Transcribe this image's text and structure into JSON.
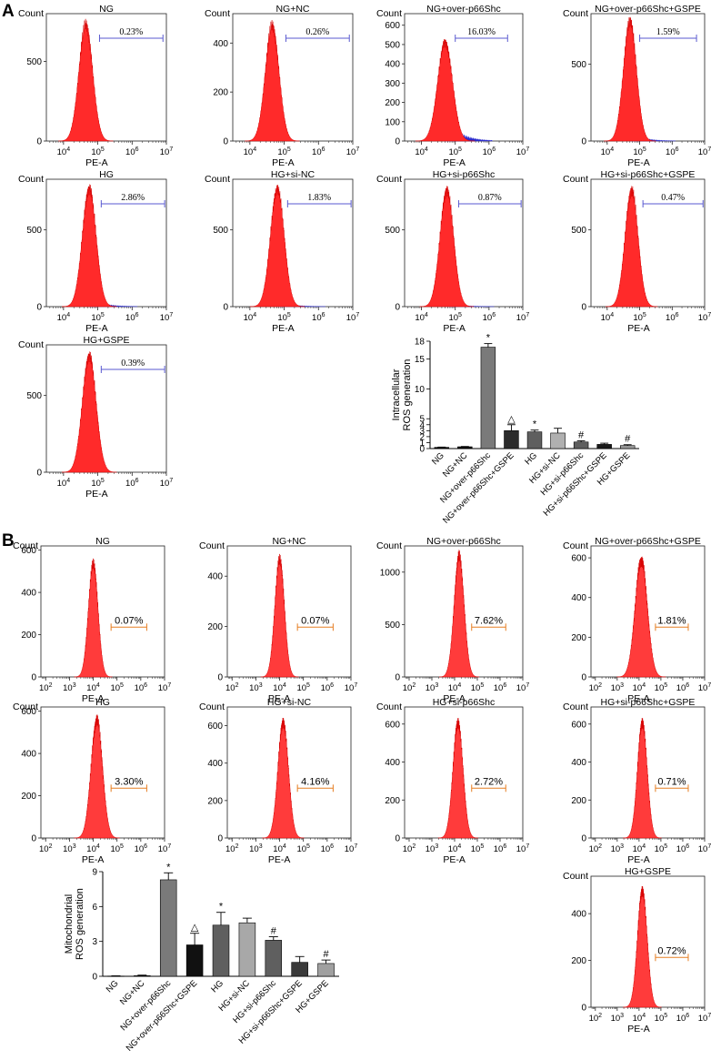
{
  "panels": {
    "A": "A",
    "B": "B"
  },
  "hist_common": {
    "count_label": "Count",
    "x_label": "PE-A"
  },
  "chart_data": [
    {
      "type": "histogram",
      "panel": "A",
      "title": "NG",
      "marker_value": "0.23%",
      "yticks": [
        "0",
        "500"
      ],
      "ymax": 800,
      "xticks": [
        "10^4",
        "10^5",
        "10^6",
        "10^7"
      ],
      "x_decade_range": [
        3.5,
        7
      ],
      "peak_log": 4.65,
      "peak_y": 730,
      "width": 0.2,
      "tail_color": "#3333cc",
      "tail": 0,
      "marker_range_log": [
        5.05,
        6.9
      ],
      "marker_color": "#5a5ad0",
      "fill": "#ff2a2a"
    },
    {
      "type": "histogram",
      "panel": "A",
      "title": "NG+NC",
      "marker_value": "0.26%",
      "yticks": [
        "0",
        "200",
        "400"
      ],
      "ymax": 520,
      "xticks": [
        "10^4",
        "10^5",
        "10^6",
        "10^7"
      ],
      "x_decade_range": [
        3.5,
        7
      ],
      "peak_log": 4.65,
      "peak_y": 470,
      "width": 0.2,
      "tail_color": "#3333cc",
      "tail": 0,
      "marker_range_log": [
        5.05,
        6.9
      ],
      "marker_color": "#5a5ad0",
      "fill": "#ff2a2a"
    },
    {
      "type": "histogram",
      "panel": "A",
      "title": "NG+over-p66Shc",
      "marker_value": "16.03%",
      "yticks": [
        "0",
        "100",
        "200",
        "300",
        "400",
        "500",
        "600"
      ],
      "ymax": 660,
      "xticks": [
        "10^4",
        "10^5",
        "10^6",
        "10^7"
      ],
      "x_decade_range": [
        3.5,
        7
      ],
      "peak_log": 4.7,
      "peak_y": 510,
      "width": 0.22,
      "tail_color": "#2a2acc",
      "tail": 1,
      "marker_range_log": [
        5.0,
        6.55
      ],
      "marker_color": "#5a5ad0",
      "fill": "#ff2a2a"
    },
    {
      "type": "histogram",
      "panel": "A",
      "title": "NG+over-p66Shc+GSPE",
      "marker_value": "1.59%",
      "yticks": [
        "0",
        "500"
      ],
      "ymax": 830,
      "xticks": [
        "10^4",
        "10^5",
        "10^6",
        "10^7"
      ],
      "x_decade_range": [
        3.5,
        7
      ],
      "peak_log": 4.7,
      "peak_y": 780,
      "width": 0.2,
      "tail_color": "#3333cc",
      "tail": 0.3,
      "marker_range_log": [
        5.0,
        6.75
      ],
      "marker_color": "#5a5ad0",
      "fill": "#ff2a2a"
    },
    {
      "type": "histogram",
      "panel": "A",
      "title": "HG",
      "marker_value": "2.86%",
      "yticks": [
        "0",
        "500"
      ],
      "ymax": 830,
      "xticks": [
        "10^4",
        "10^5",
        "10^6",
        "10^7"
      ],
      "x_decade_range": [
        3.5,
        7
      ],
      "peak_log": 4.75,
      "peak_y": 770,
      "width": 0.2,
      "tail_color": "#3333cc",
      "tail": 0.3,
      "marker_range_log": [
        5.1,
        6.95
      ],
      "marker_color": "#5a5ad0",
      "fill": "#ff2a2a"
    },
    {
      "type": "histogram",
      "panel": "A",
      "title": "HG+si-NC",
      "marker_value": "1.83%",
      "yticks": [
        "0",
        "500"
      ],
      "ymax": 830,
      "xticks": [
        "10^4",
        "10^5",
        "10^6",
        "10^7"
      ],
      "x_decade_range": [
        3.5,
        7
      ],
      "peak_log": 4.8,
      "peak_y": 770,
      "width": 0.2,
      "tail_color": "#3333cc",
      "tail": 0.2,
      "marker_range_log": [
        5.1,
        6.95
      ],
      "marker_color": "#5a5ad0",
      "fill": "#ff2a2a"
    },
    {
      "type": "histogram",
      "panel": "A",
      "title": "HG+si-p66Shc",
      "marker_value": "0.87%",
      "yticks": [
        "0",
        "500"
      ],
      "ymax": 830,
      "xticks": [
        "10^4",
        "10^5",
        "10^6",
        "10^7"
      ],
      "x_decade_range": [
        3.5,
        7
      ],
      "peak_log": 4.75,
      "peak_y": 760,
      "width": 0.2,
      "tail_color": "#3333cc",
      "tail": 0.15,
      "marker_range_log": [
        5.1,
        6.95
      ],
      "marker_color": "#5a5ad0",
      "fill": "#ff2a2a"
    },
    {
      "type": "histogram",
      "panel": "A",
      "title": "HG+si-p66Shc+GSPE",
      "marker_value": "0.47%",
      "yticks": [
        "0",
        "500"
      ],
      "ymax": 830,
      "xticks": [
        "10^4",
        "10^5",
        "10^6",
        "10^7"
      ],
      "x_decade_range": [
        3.5,
        7
      ],
      "peak_log": 4.75,
      "peak_y": 760,
      "width": 0.2,
      "tail_color": "#3333cc",
      "tail": 0,
      "marker_range_log": [
        5.1,
        6.95
      ],
      "marker_color": "#5a5ad0",
      "fill": "#ff2a2a"
    },
    {
      "type": "histogram",
      "panel": "A",
      "title": "HG+GSPE",
      "marker_value": "0.39%",
      "yticks": [
        "0",
        "500"
      ],
      "ymax": 830,
      "xticks": [
        "10^4",
        "10^5",
        "10^6",
        "10^7"
      ],
      "x_decade_range": [
        3.5,
        7
      ],
      "peak_log": 4.75,
      "peak_y": 760,
      "width": 0.2,
      "tail_color": "#3333cc",
      "tail": 0,
      "marker_range_log": [
        5.1,
        6.95
      ],
      "marker_color": "#5a5ad0",
      "fill": "#ff2a2a"
    },
    {
      "type": "bar",
      "panel": "A",
      "ylabel": "Intracellular ROS generation",
      "ylim": [
        0,
        18
      ],
      "yticks": [
        "0",
        "1",
        "2",
        "3",
        "4",
        "5",
        "10",
        "15",
        "18"
      ],
      "categories": [
        "NG",
        "NG+NC",
        "NG+over-p66Shc",
        "NG+over-p66Shc+GSPE",
        "HG",
        "HG+si-NC",
        "HG+si-p66Shc",
        "HG+si-p66Shc+GSPE",
        "HG+GSPE"
      ],
      "values": [
        0.2,
        0.3,
        17.0,
        3.0,
        2.8,
        2.6,
        1.1,
        0.7,
        0.5
      ],
      "errors": [
        0.05,
        0.05,
        0.6,
        1.0,
        0.3,
        0.8,
        0.2,
        0.2,
        0.15
      ],
      "colors": [
        "#000000",
        "#000000",
        "#7a7a7a",
        "#2b2b2b",
        "#5f5f5f",
        "#b0b0b0",
        "#5f5f5f",
        "#1a1a1a",
        "#9a9a9a"
      ],
      "annotations": [
        "",
        "",
        "*",
        "△",
        "*",
        "",
        "#",
        "",
        "#"
      ]
    },
    {
      "type": "histogram",
      "panel": "B",
      "title": "NG",
      "marker_value": "0.07%",
      "yticks": [
        "0",
        "200",
        "400",
        "600"
      ],
      "ymax": 620,
      "xticks": [
        "10^2",
        "10^3",
        "10^4",
        "10^5",
        "10^6",
        "10^7"
      ],
      "x_decade_range": [
        1.8,
        7
      ],
      "peak_log": 4.0,
      "peak_y": 540,
      "width": 0.2,
      "tail_color": "#ff3b3b",
      "tail": 0,
      "marker_range_log": [
        4.75,
        6.25
      ],
      "marker_color": "#e67e22",
      "fill": "#ff3b3b"
    },
    {
      "type": "histogram",
      "panel": "B",
      "title": "NG+NC",
      "marker_value": "0.07%",
      "yticks": [
        "0",
        "200",
        "400"
      ],
      "ymax": 520,
      "xticks": [
        "10^2",
        "10^3",
        "10^4",
        "10^5",
        "10^6",
        "10^7"
      ],
      "x_decade_range": [
        1.8,
        7
      ],
      "peak_log": 4.0,
      "peak_y": 470,
      "width": 0.2,
      "tail_color": "#ff3b3b",
      "tail": 0,
      "marker_range_log": [
        4.75,
        6.25
      ],
      "marker_color": "#e67e22",
      "fill": "#ff3b3b"
    },
    {
      "type": "histogram",
      "panel": "B",
      "title": "NG+over-p66Shc",
      "marker_value": "7.62%",
      "yticks": [
        "0",
        "500",
        "1000"
      ],
      "ymax": 1250,
      "xticks": [
        "10^2",
        "10^3",
        "10^4",
        "10^5",
        "10^6",
        "10^7"
      ],
      "x_decade_range": [
        1.8,
        7
      ],
      "peak_log": 4.2,
      "peak_y": 1150,
      "width": 0.22,
      "tail_color": "#ff3b3b",
      "tail": 0,
      "marker_range_log": [
        4.75,
        6.25
      ],
      "marker_color": "#e67e22",
      "fill": "#ff3b3b"
    },
    {
      "type": "histogram",
      "panel": "B",
      "title": "NG+over-p66Shc+GSPE",
      "marker_value": "1.81%",
      "yticks": [
        "0",
        "200",
        "400",
        "600"
      ],
      "ymax": 660,
      "xticks": [
        "10^2",
        "10^3",
        "10^4",
        "10^5",
        "10^6",
        "10^7"
      ],
      "x_decade_range": [
        1.8,
        7
      ],
      "peak_log": 4.1,
      "peak_y": 590,
      "width": 0.28,
      "tail_color": "#ff3b3b",
      "tail": 0,
      "marker_range_log": [
        4.75,
        6.25
      ],
      "marker_color": "#e67e22",
      "fill": "#ff3b3b"
    },
    {
      "type": "histogram",
      "panel": "B",
      "title": "HG",
      "marker_value": "3.30%",
      "yticks": [
        "0",
        "200",
        "400",
        "600"
      ],
      "ymax": 620,
      "xticks": [
        "10^2",
        "10^3",
        "10^4",
        "10^5",
        "10^6",
        "10^7"
      ],
      "x_decade_range": [
        1.8,
        7
      ],
      "peak_log": 4.15,
      "peak_y": 560,
      "width": 0.24,
      "tail_color": "#ff3b3b",
      "tail": 0,
      "marker_range_log": [
        4.75,
        6.25
      ],
      "marker_color": "#e67e22",
      "fill": "#ff3b3b"
    },
    {
      "type": "histogram",
      "panel": "B",
      "title": "HG+si-NC",
      "marker_value": "4.16%",
      "yticks": [
        "0",
        "200",
        "400",
        "600"
      ],
      "ymax": 700,
      "xticks": [
        "10^2",
        "10^3",
        "10^4",
        "10^5",
        "10^6",
        "10^7"
      ],
      "x_decade_range": [
        1.8,
        7
      ],
      "peak_log": 4.15,
      "peak_y": 620,
      "width": 0.22,
      "tail_color": "#ff3b3b",
      "tail": 0,
      "marker_range_log": [
        4.75,
        6.25
      ],
      "marker_color": "#e67e22",
      "fill": "#ff3b3b"
    },
    {
      "type": "histogram",
      "panel": "B",
      "title": "HG+si-p66Shc",
      "marker_value": "2.72%",
      "yticks": [
        "0",
        "200",
        "400",
        "600"
      ],
      "ymax": 690,
      "xticks": [
        "10^2",
        "10^3",
        "10^4",
        "10^5",
        "10^6",
        "10^7"
      ],
      "x_decade_range": [
        1.8,
        7
      ],
      "peak_log": 4.15,
      "peak_y": 610,
      "width": 0.22,
      "tail_color": "#ff3b3b",
      "tail": 0,
      "marker_range_log": [
        4.75,
        6.25
      ],
      "marker_color": "#e67e22",
      "fill": "#ff3b3b"
    },
    {
      "type": "histogram",
      "panel": "B",
      "title": "HG+si-p66Shc+GSPE",
      "marker_value": "0.71%",
      "yticks": [
        "0",
        "200",
        "400",
        "600"
      ],
      "ymax": 690,
      "xticks": [
        "10^2",
        "10^3",
        "10^4",
        "10^5",
        "10^6",
        "10^7"
      ],
      "x_decade_range": [
        1.8,
        7
      ],
      "peak_log": 4.15,
      "peak_y": 610,
      "width": 0.22,
      "tail_color": "#ff3b3b",
      "tail": 0,
      "marker_range_log": [
        4.75,
        6.25
      ],
      "marker_color": "#e67e22",
      "fill": "#ff3b3b"
    },
    {
      "type": "histogram",
      "panel": "B",
      "title": "HG+GSPE",
      "marker_value": "0.72%",
      "yticks": [
        "0",
        "200",
        "400"
      ],
      "ymax": 560,
      "xticks": [
        "10^2",
        "10^3",
        "10^4",
        "10^5",
        "10^6",
        "10^7"
      ],
      "x_decade_range": [
        1.8,
        7
      ],
      "peak_log": 4.15,
      "peak_y": 500,
      "width": 0.22,
      "tail_color": "#ff3b3b",
      "tail": 0,
      "marker_range_log": [
        4.75,
        6.25
      ],
      "marker_color": "#e67e22",
      "fill": "#ff3b3b"
    },
    {
      "type": "bar",
      "panel": "B",
      "ylabel": "Mitochondrial ROS generation",
      "ylim": [
        0,
        9
      ],
      "yticks": [
        "0",
        "3",
        "6",
        "9"
      ],
      "categories": [
        "NG",
        "NG+NC",
        "NG+over-p66Shc",
        "NG+over-p66Shc+GSPE",
        "HG",
        "HG+si-NC",
        "HG+si-p66Shc",
        "HG+si-p66Shc+GSPE",
        "HG+GSPE"
      ],
      "values": [
        0.02,
        0.05,
        8.3,
        2.7,
        4.4,
        4.6,
        3.1,
        1.2,
        1.1
      ],
      "errors": [
        0.02,
        0.05,
        0.6,
        1.0,
        1.1,
        0.4,
        0.3,
        0.5,
        0.3
      ],
      "colors": [
        "#000000",
        "#000000",
        "#7a7a7a",
        "#111111",
        "#5f5f5f",
        "#a8a8a8",
        "#5f5f5f",
        "#3a3a3a",
        "#a0a0a0"
      ],
      "annotations": [
        "",
        "",
        "*",
        "△",
        "*",
        "",
        "#",
        "",
        "#"
      ]
    }
  ]
}
